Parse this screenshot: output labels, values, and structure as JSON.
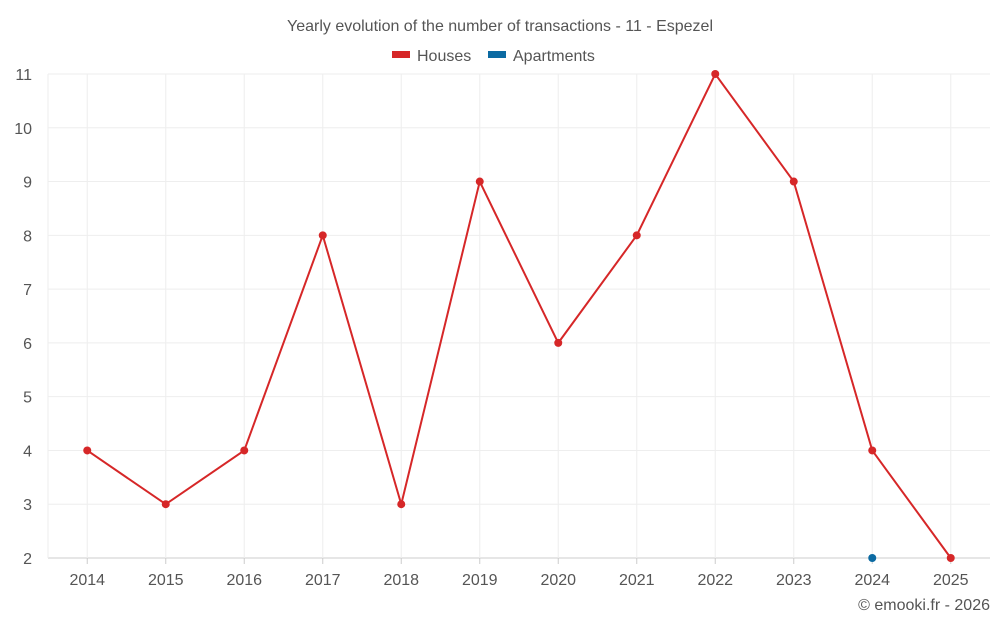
{
  "chart_data": {
    "type": "line",
    "title": "Yearly evolution of the number of transactions - 11 - Espezel",
    "categories": [
      "2014",
      "2015",
      "2016",
      "2017",
      "2018",
      "2019",
      "2020",
      "2021",
      "2022",
      "2023",
      "2024",
      "2025"
    ],
    "series": [
      {
        "name": "Houses",
        "color": "#d62728",
        "values": [
          4,
          3,
          4,
          8,
          3,
          9,
          6,
          8,
          11,
          9,
          4,
          2
        ]
      },
      {
        "name": "Apartments",
        "color": "#0b6aa2",
        "values": [
          null,
          null,
          null,
          null,
          null,
          null,
          null,
          null,
          null,
          null,
          2,
          null
        ]
      }
    ],
    "ylim": [
      2,
      11
    ],
    "yticks": [
      "2",
      "3",
      "4",
      "5",
      "6",
      "7",
      "8",
      "9",
      "10",
      "11"
    ],
    "xlabel": "",
    "ylabel": "",
    "grid": true,
    "legend": "top-center"
  },
  "footer": {
    "credit": "© emooki.fr - 2026"
  }
}
